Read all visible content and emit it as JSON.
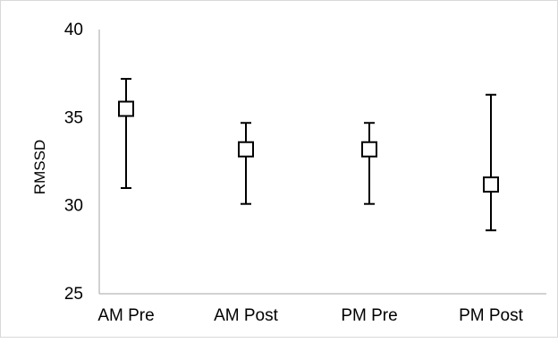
{
  "chart_data": {
    "type": "scatter",
    "title": "",
    "xlabel": "",
    "ylabel": "RMSSD",
    "ylim": [
      25,
      40
    ],
    "yticks": [
      "25",
      "30",
      "35",
      "40"
    ],
    "categories": [
      "AM Pre",
      "AM Post",
      "PM Pre",
      "PM Post"
    ],
    "series": [
      {
        "marker": "open-square",
        "values": [
          35.5,
          33.2,
          33.2,
          31.2
        ],
        "error_low": [
          31.0,
          30.1,
          30.1,
          28.6
        ],
        "error_high": [
          37.2,
          34.7,
          34.7,
          36.3
        ]
      }
    ],
    "grid": false,
    "legend": "none",
    "colors": {
      "marker_stroke": "#000000",
      "marker_fill": "#ffffff",
      "axis": "#a6a6a6"
    }
  }
}
